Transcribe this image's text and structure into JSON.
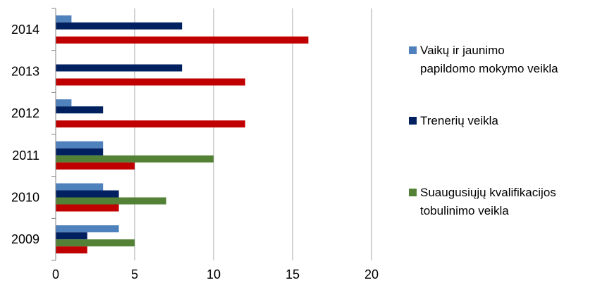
{
  "chart_data": {
    "type": "bar",
    "orientation": "horizontal",
    "categories": [
      "2009",
      "2010",
      "2011",
      "2012",
      "2013",
      "2014"
    ],
    "series": [
      {
        "name": "Vaikų ir jaunimo papildomo mokymo veikla",
        "color": "#4f81bd",
        "values": [
          4,
          3,
          3,
          1,
          null,
          1
        ]
      },
      {
        "name": "Trenerių veikla",
        "color": "#002060",
        "values": [
          2,
          4,
          3,
          3,
          8,
          8
        ]
      },
      {
        "name": "Suaugusiųjų kvalifikacijos tobulinimo veikla",
        "color": "#538135",
        "values": [
          5,
          7,
          10,
          null,
          null,
          null
        ]
      },
      {
        "name": "",
        "color": "#c00000",
        "values": [
          2,
          4,
          5,
          12,
          12,
          16
        ]
      }
    ],
    "xlim": [
      0,
      20
    ],
    "xticks": [
      "0",
      "5",
      "10",
      "15",
      "20"
    ],
    "grid": "vertical",
    "legend_position": "right"
  },
  "legend": {
    "items": [
      {
        "label_line1": "Vaikų ir jaunimo",
        "label_line2": "papildomo mokymo veikla",
        "color": "#4f81bd"
      },
      {
        "label_line1": "Trenerių veikla",
        "label_line2": "",
        "color": "#002060"
      },
      {
        "label_line1": "Suaugusiųjų kvalifikacijos",
        "label_line2": "tobulinimo veikla",
        "color": "#538135"
      }
    ]
  }
}
